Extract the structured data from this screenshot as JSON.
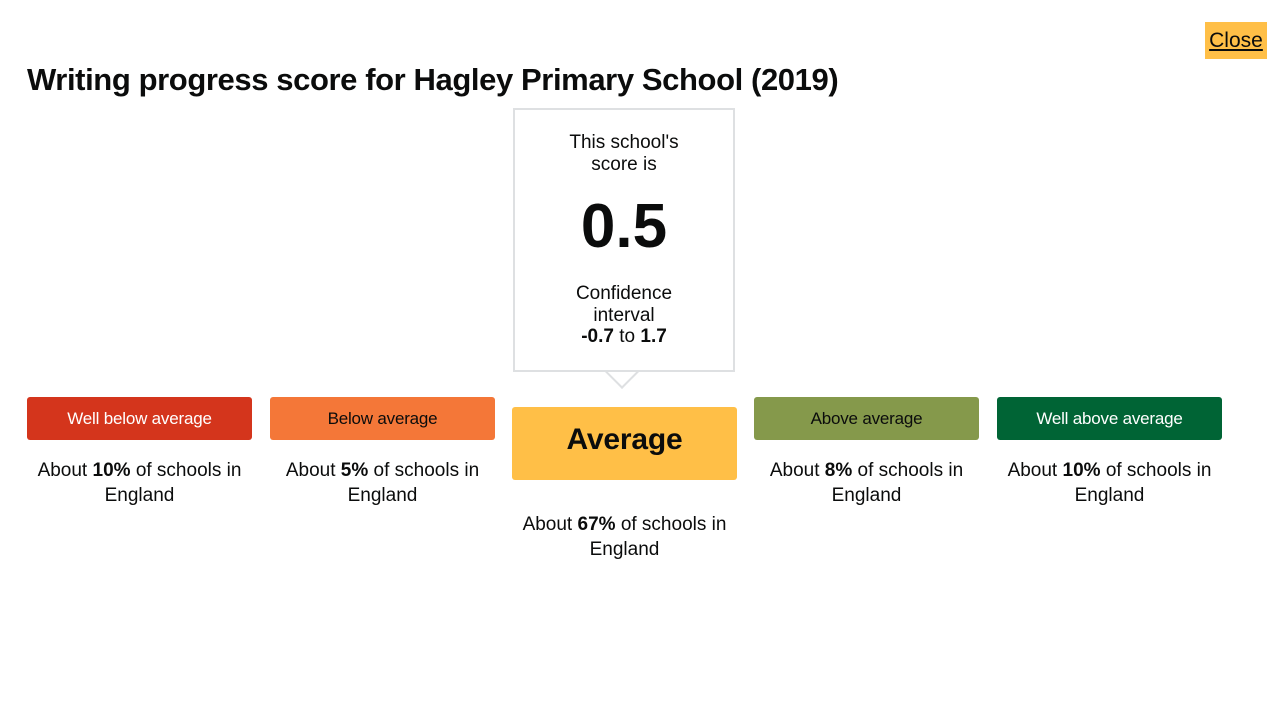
{
  "close_label": "Close",
  "title": "Writing progress score for Hagley Primary School (2019)",
  "callout": {
    "label": "This school's score is",
    "score": "0.5",
    "ci_label": "Confidence interval",
    "ci_low": "-0.7",
    "ci_to": "to",
    "ci_high": "1.7"
  },
  "bands": [
    {
      "label": "Well below average",
      "prefix": "About",
      "pct": "10%",
      "suffix": "of schools in England",
      "bg": "#d4351c",
      "fg": "#ffffff"
    },
    {
      "label": "Below average",
      "prefix": "About",
      "pct": "5%",
      "suffix": "of schools in England",
      "bg": "#f47738",
      "fg": "#0b0c0c"
    },
    {
      "label": "Average",
      "prefix": "About",
      "pct": "67%",
      "suffix": "of schools in England",
      "bg": "#ffbf47",
      "fg": "#0b0c0c",
      "current": true
    },
    {
      "label": "Above average",
      "prefix": "About",
      "pct": "8%",
      "suffix": "of schools in England",
      "bg": "#85994b",
      "fg": "#0b0c0c"
    },
    {
      "label": "Well above average",
      "prefix": "About",
      "pct": "10%",
      "suffix": "of schools in England",
      "bg": "#006435",
      "fg": "#ffffff"
    }
  ]
}
